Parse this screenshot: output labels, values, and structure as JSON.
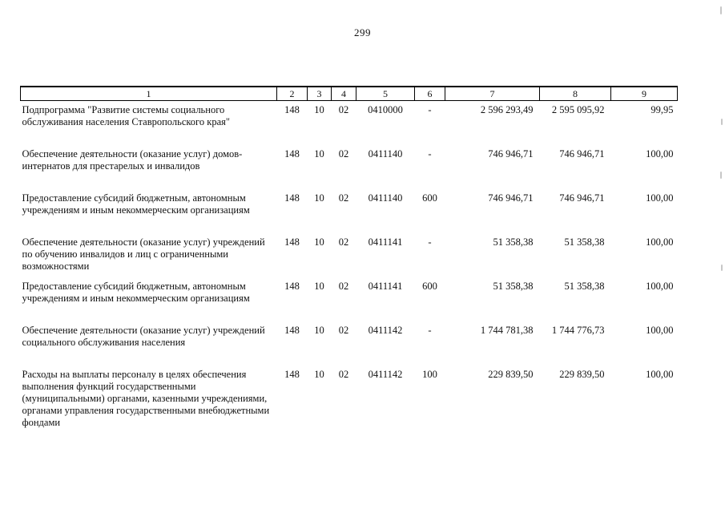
{
  "page": {
    "number": "299"
  },
  "table": {
    "header": [
      "1",
      "2",
      "3",
      "4",
      "5",
      "6",
      "7",
      "8",
      "9"
    ],
    "rows": [
      {
        "cells": [
          "Подпрограмма \"Развитие системы социального обслуживания населения Ставропольского края\"",
          "148",
          "10",
          "02",
          "0410000",
          "-",
          "2 596 293,49",
          "2 595 095,92",
          "99,95"
        ]
      },
      {
        "cells": [
          "Обеспечение деятельности (оказание услуг) домов-интернатов для престарелых и инвалидов",
          "148",
          "10",
          "02",
          "0411140",
          "-",
          "746 946,71",
          "746 946,71",
          "100,00"
        ]
      },
      {
        "cells": [
          "Предоставление субсидий бюджетным, автономным учреждениям и иным некоммерческим организациям",
          "148",
          "10",
          "02",
          "0411140",
          "600",
          "746 946,71",
          "746 946,71",
          "100,00"
        ]
      },
      {
        "cells": [
          "Обеспечение деятельности (оказание услуг) учреждений по обучению инвалидов и лиц с ограниченными возможностями",
          "148",
          "10",
          "02",
          "0411141",
          "-",
          "51 358,38",
          "51 358,38",
          "100,00"
        ]
      },
      {
        "cells": [
          "Предоставление субсидий бюджетным, автономным учреждениям и иным некоммерческим организациям",
          "148",
          "10",
          "02",
          "0411141",
          "600",
          "51 358,38",
          "51 358,38",
          "100,00"
        ]
      },
      {
        "cells": [
          "Обеспечение деятельности (оказание услуг) учреждений социального обслуживания населения",
          "148",
          "10",
          "02",
          "0411142",
          "-",
          "1 744 781,38",
          "1 744 776,73",
          "100,00"
        ]
      },
      {
        "cells": [
          "Расходы на выплаты персоналу в целях обеспечения выполнения функций государственными (муниципальными) органами, казенными учреждениями, органами управления государственными внебюджетными фондами",
          "148",
          "10",
          "02",
          "0411142",
          "100",
          "229 839,50",
          "229 839,50",
          "100,00"
        ]
      }
    ]
  }
}
